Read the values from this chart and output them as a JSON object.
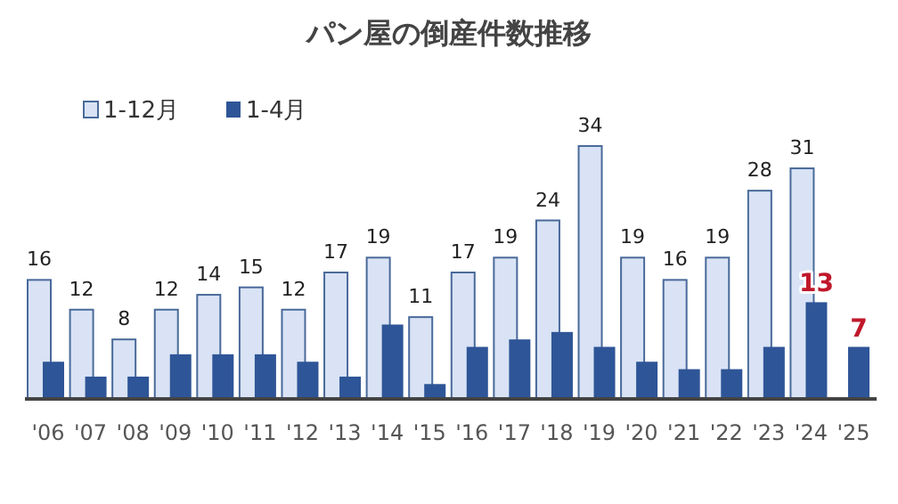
{
  "chart_data": {
    "type": "bar",
    "title": "パン屋の倒産件数推移",
    "categories": [
      "'06",
      "'07",
      "'08",
      "'09",
      "'10",
      "'11",
      "'12",
      "'13",
      "'14",
      "'15",
      "'16",
      "'17",
      "'18",
      "'19",
      "'20",
      "'21",
      "'22",
      "'23",
      "'24",
      "'25"
    ],
    "legend": "top left",
    "series": [
      {
        "name": "1-12月",
        "color": "#d9e3f5",
        "values": [
          16,
          12,
          8,
          12,
          14,
          15,
          12,
          17,
          19,
          11,
          17,
          19,
          24,
          34,
          19,
          16,
          19,
          28,
          31,
          null
        ],
        "value_labels": [
          "16",
          "12",
          "8",
          "12",
          "14",
          "15",
          "12",
          "17",
          "19",
          "11",
          "17",
          "19",
          "24",
          "34",
          "19",
          "16",
          "19",
          "28",
          "31",
          null
        ]
      },
      {
        "name": "1-4月",
        "color": "#2e5597",
        "values": [
          5,
          3,
          3,
          6,
          6,
          6,
          5,
          3,
          10,
          2,
          7,
          8,
          9,
          7,
          5,
          4,
          4,
          7,
          13,
          7
        ],
        "value_labels": [
          null,
          null,
          null,
          null,
          null,
          null,
          null,
          null,
          null,
          null,
          null,
          null,
          null,
          null,
          null,
          null,
          null,
          null,
          "13",
          "7"
        ]
      }
    ]
  }
}
